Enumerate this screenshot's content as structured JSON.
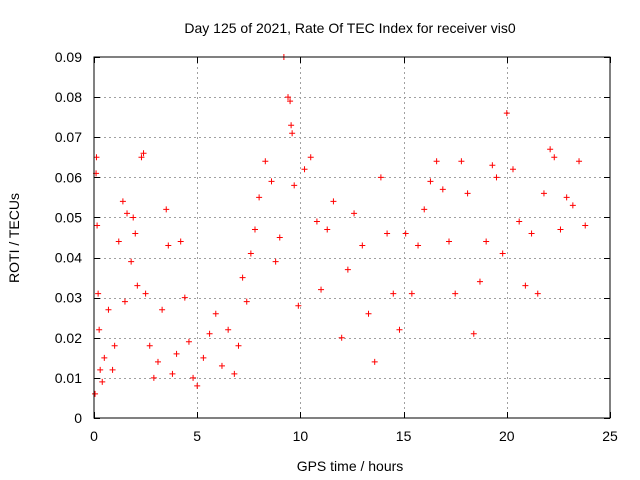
{
  "chart_data": {
    "type": "scatter",
    "title": "Day 125 of 2021, Rate Of TEC Index for receiver vis0",
    "xlabel": "GPS time / hours",
    "ylabel": "ROTI / TECUs",
    "xlim": [
      0,
      25
    ],
    "ylim": [
      0,
      0.09
    ],
    "xticks": [
      0,
      5,
      10,
      15,
      20,
      25
    ],
    "xtick_labels": [
      "0",
      "5",
      "10",
      "15",
      "20",
      "25"
    ],
    "yticks": [
      0,
      0.01,
      0.02,
      0.03,
      0.04,
      0.05,
      0.06,
      0.07,
      0.08,
      0.09
    ],
    "ytick_labels": [
      "0",
      "0.01",
      "0.02",
      "0.03",
      "0.04",
      "0.05",
      "0.06",
      "0.07",
      "0.08",
      "0.09"
    ],
    "grid": true,
    "marker": "plus",
    "color": "#ff0000",
    "series": [
      {
        "name": "ROTI",
        "x": [
          0.05,
          0.1,
          0.12,
          0.15,
          0.2,
          0.25,
          0.3,
          0.4,
          0.5,
          0.7,
          0.9,
          1.0,
          1.2,
          1.4,
          1.5,
          1.6,
          1.8,
          1.9,
          2.0,
          2.1,
          2.3,
          2.4,
          2.5,
          2.7,
          2.9,
          3.1,
          3.3,
          3.5,
          3.6,
          3.8,
          4.0,
          4.2,
          4.4,
          4.6,
          4.8,
          5.0,
          5.3,
          5.6,
          5.9,
          6.2,
          6.5,
          6.8,
          7.0,
          7.2,
          7.4,
          7.6,
          7.8,
          8.0,
          8.3,
          8.6,
          8.8,
          9.0,
          9.2,
          9.4,
          9.5,
          9.55,
          9.6,
          9.7,
          9.9,
          10.2,
          10.5,
          10.8,
          11.0,
          11.3,
          11.6,
          12.0,
          12.3,
          12.6,
          13.0,
          13.3,
          13.6,
          13.9,
          14.2,
          14.5,
          14.8,
          15.1,
          15.4,
          15.7,
          16.0,
          16.3,
          16.6,
          16.9,
          17.2,
          17.5,
          17.8,
          18.1,
          18.4,
          18.7,
          19.0,
          19.3,
          19.5,
          19.8,
          20.0,
          20.3,
          20.6,
          20.9,
          21.2,
          21.5,
          21.8,
          22.1,
          22.3,
          22.6,
          22.9,
          23.2,
          23.5,
          23.8
        ],
        "y": [
          0.006,
          0.061,
          0.065,
          0.048,
          0.031,
          0.022,
          0.012,
          0.009,
          0.015,
          0.027,
          0.012,
          0.018,
          0.044,
          0.054,
          0.029,
          0.051,
          0.039,
          0.05,
          0.046,
          0.033,
          0.065,
          0.066,
          0.031,
          0.018,
          0.01,
          0.014,
          0.027,
          0.052,
          0.043,
          0.011,
          0.016,
          0.044,
          0.03,
          0.019,
          0.01,
          0.008,
          0.015,
          0.021,
          0.026,
          0.013,
          0.022,
          0.011,
          0.018,
          0.035,
          0.029,
          0.041,
          0.047,
          0.055,
          0.064,
          0.059,
          0.039,
          0.045,
          0.09,
          0.08,
          0.079,
          0.073,
          0.071,
          0.058,
          0.028,
          0.062,
          0.065,
          0.049,
          0.032,
          0.047,
          0.054,
          0.02,
          0.037,
          0.051,
          0.043,
          0.026,
          0.014,
          0.06,
          0.046,
          0.031,
          0.022,
          0.046,
          0.031,
          0.043,
          0.052,
          0.059,
          0.064,
          0.057,
          0.044,
          0.031,
          0.064,
          0.056,
          0.021,
          0.034,
          0.044,
          0.063,
          0.06,
          0.041,
          0.076,
          0.062,
          0.049,
          0.033,
          0.046,
          0.031,
          0.056,
          0.067,
          0.065,
          0.047,
          0.055,
          0.053,
          0.064,
          0.048
        ]
      }
    ]
  }
}
